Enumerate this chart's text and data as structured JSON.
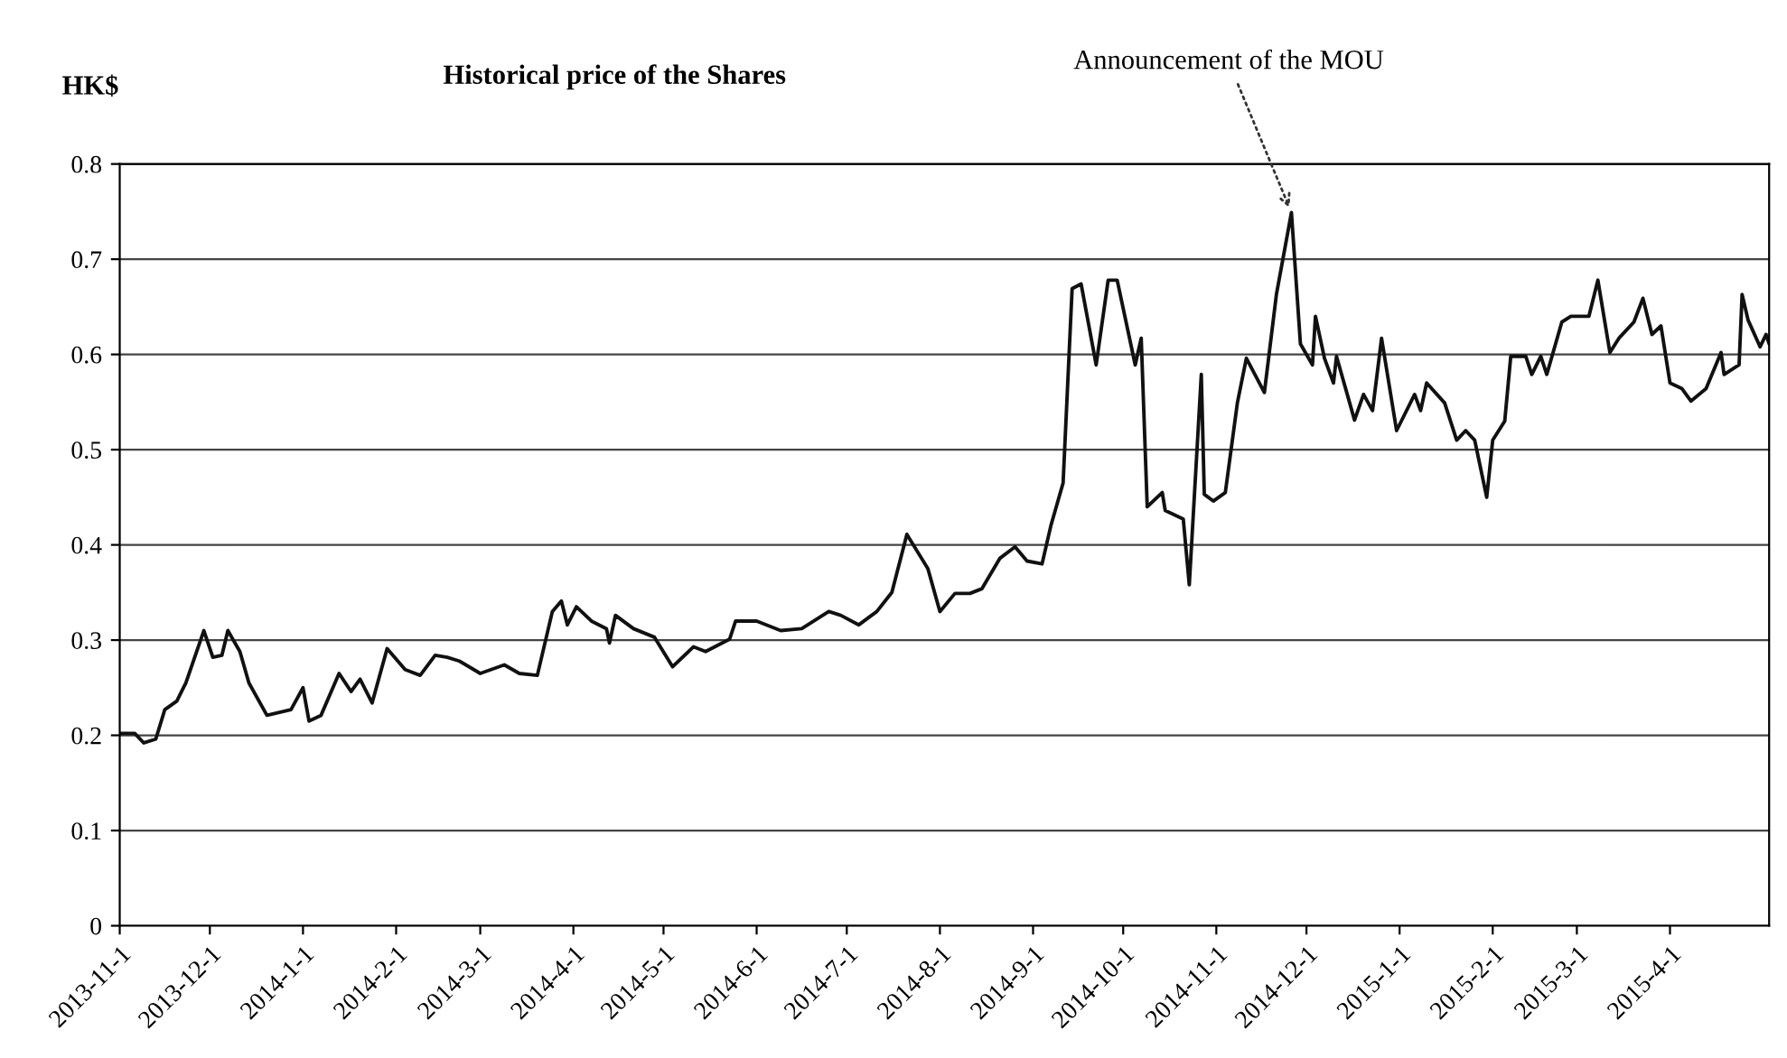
{
  "chart_data": {
    "type": "line",
    "title": "Historical price of the Shares",
    "ylabel": "HK$",
    "x": [
      "2013-11-01",
      "2013-11-06",
      "2013-11-09",
      "2013-11-13",
      "2013-11-16",
      "2013-11-20",
      "2013-11-23",
      "2013-11-29",
      "2013-12-02",
      "2013-12-05",
      "2013-12-07",
      "2013-12-11",
      "2013-12-14",
      "2013-12-20",
      "2013-12-28",
      "2014-01-01",
      "2014-01-03",
      "2014-01-07",
      "2014-01-13",
      "2014-01-17",
      "2014-01-20",
      "2014-01-24",
      "2014-01-29",
      "2014-02-04",
      "2014-02-09",
      "2014-02-14",
      "2014-02-18",
      "2014-02-22",
      "2014-03-01",
      "2014-03-09",
      "2014-03-14",
      "2014-03-20",
      "2014-03-25",
      "2014-03-28",
      "2014-03-30",
      "2014-04-02",
      "2014-04-07",
      "2014-04-12",
      "2014-04-13",
      "2014-04-15",
      "2014-04-21",
      "2014-04-28",
      "2014-05-04",
      "2014-05-11",
      "2014-05-15",
      "2014-05-23",
      "2014-05-25",
      "2014-06-01",
      "2014-06-09",
      "2014-06-16",
      "2014-06-25",
      "2014-06-29",
      "2014-07-05",
      "2014-07-11",
      "2014-07-16",
      "2014-07-21",
      "2014-07-28",
      "2014-08-01",
      "2014-08-06",
      "2014-08-11",
      "2014-08-15",
      "2014-08-21",
      "2014-08-26",
      "2014-08-30",
      "2014-09-04",
      "2014-09-07",
      "2014-09-11",
      "2014-09-14",
      "2014-09-17",
      "2014-09-22",
      "2014-09-26",
      "2014-09-29",
      "2014-10-05",
      "2014-10-07",
      "2014-10-09",
      "2014-10-14",
      "2014-10-15",
      "2014-10-21",
      "2014-10-23",
      "2014-10-27",
      "2014-10-28",
      "2014-10-31",
      "2014-11-04",
      "2014-11-08",
      "2014-11-11",
      "2014-11-17",
      "2014-11-21",
      "2014-11-26",
      "2014-11-29",
      "2014-12-03",
      "2014-12-04",
      "2014-12-07",
      "2014-12-10",
      "2014-12-11",
      "2014-12-17",
      "2014-12-20",
      "2014-12-23",
      "2014-12-26",
      "2014-12-31",
      "2015-01-06",
      "2015-01-08",
      "2015-01-10",
      "2015-01-16",
      "2015-01-20",
      "2015-01-23",
      "2015-01-26",
      "2015-01-30",
      "2015-02-01",
      "2015-02-05",
      "2015-02-07",
      "2015-02-12",
      "2015-02-14",
      "2015-02-17",
      "2015-02-19",
      "2015-02-24",
      "2015-02-27",
      "2015-03-05",
      "2015-03-08",
      "2015-03-12",
      "2015-03-15",
      "2015-03-20",
      "2015-03-23",
      "2015-03-26",
      "2015-03-29",
      "2015-04-01",
      "2015-04-05",
      "2015-04-08",
      "2015-04-13",
      "2015-04-18",
      "2015-04-19",
      "2015-04-24",
      "2015-04-25",
      "2015-04-27",
      "2015-05-01",
      "2015-05-03",
      "2015-05-04"
    ],
    "series": [
      {
        "color": "#111111",
        "values": [
          0.202,
          0.202,
          0.192,
          0.196,
          0.227,
          0.236,
          0.255,
          0.31,
          0.282,
          0.284,
          0.31,
          0.288,
          0.255,
          0.221,
          0.227,
          0.25,
          0.215,
          0.221,
          0.265,
          0.246,
          0.259,
          0.234,
          0.291,
          0.269,
          0.263,
          0.284,
          0.282,
          0.278,
          0.265,
          0.274,
          0.265,
          0.263,
          0.33,
          0.341,
          0.316,
          0.335,
          0.32,
          0.312,
          0.297,
          0.326,
          0.312,
          0.303,
          0.272,
          0.293,
          0.288,
          0.301,
          0.32,
          0.32,
          0.31,
          0.312,
          0.33,
          0.326,
          0.316,
          0.33,
          0.35,
          0.411,
          0.375,
          0.33,
          0.349,
          0.349,
          0.354,
          0.386,
          0.398,
          0.383,
          0.38,
          0.421,
          0.465,
          0.669,
          0.674,
          0.589,
          0.678,
          0.678,
          0.589,
          0.617,
          0.44,
          0.455,
          0.436,
          0.427,
          0.358,
          0.579,
          0.453,
          0.446,
          0.455,
          0.549,
          0.596,
          0.56,
          0.663,
          0.749,
          0.611,
          0.589,
          0.64,
          0.596,
          0.57,
          0.598,
          0.531,
          0.558,
          0.541,
          0.617,
          0.52,
          0.558,
          0.541,
          0.57,
          0.549,
          0.51,
          0.52,
          0.51,
          0.45,
          0.51,
          0.53,
          0.598,
          0.598,
          0.579,
          0.598,
          0.579,
          0.634,
          0.64,
          0.64,
          0.678,
          0.602,
          0.617,
          0.634,
          0.659,
          0.621,
          0.63,
          0.57,
          0.564,
          0.551,
          0.564,
          0.602,
          0.579,
          0.589,
          0.663,
          0.636,
          0.608,
          0.621,
          0.611
        ]
      }
    ],
    "xlim": [
      "2013-11-01",
      "2015-05-04"
    ],
    "xticks": [
      {
        "value": "2013-11-01",
        "label": "2013-11-1"
      },
      {
        "value": "2013-12-01",
        "label": "2013-12-1"
      },
      {
        "value": "2014-01-01",
        "label": "2014-1-1"
      },
      {
        "value": "2014-02-01",
        "label": "2014-2-1"
      },
      {
        "value": "2014-03-01",
        "label": "2014-3-1"
      },
      {
        "value": "2014-04-01",
        "label": "2014-4-1"
      },
      {
        "value": "2014-05-01",
        "label": "2014-5-1"
      },
      {
        "value": "2014-06-01",
        "label": "2014-6-1"
      },
      {
        "value": "2014-07-01",
        "label": "2014-7-1"
      },
      {
        "value": "2014-08-01",
        "label": "2014-8-1"
      },
      {
        "value": "2014-09-01",
        "label": "2014-9-1"
      },
      {
        "value": "2014-10-01",
        "label": "2014-10-1"
      },
      {
        "value": "2014-11-01",
        "label": "2014-11-1"
      },
      {
        "value": "2014-12-01",
        "label": "2014-12-1"
      },
      {
        "value": "2015-01-01",
        "label": "2015-1-1"
      },
      {
        "value": "2015-02-01",
        "label": "2015-2-1"
      },
      {
        "value": "2015-03-01",
        "label": "2015-3-1"
      },
      {
        "value": "2015-04-01",
        "label": "2015-4-1"
      }
    ],
    "ylim": [
      0,
      0.8
    ],
    "yticks": [
      0,
      0.1,
      0.2,
      0.3,
      0.4,
      0.5,
      0.6,
      0.7,
      0.8
    ],
    "grid": "y",
    "marker": "none",
    "line_style": "solid",
    "annotations": [
      {
        "text": "Announcement of the MOU",
        "x": "2014-11-26",
        "y": 0.749
      }
    ]
  }
}
